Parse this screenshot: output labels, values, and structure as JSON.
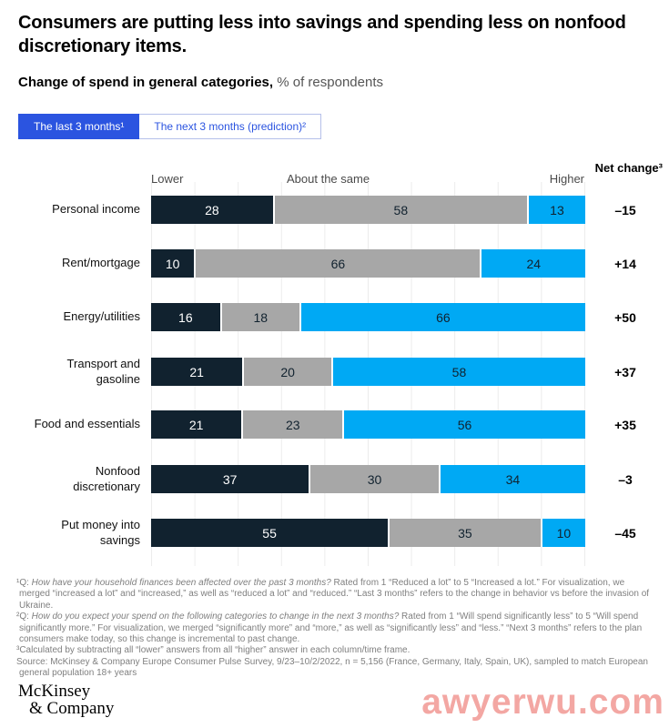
{
  "header": {
    "title": "Consumers are putting less into savings and spending less on nonfood discretionary items.",
    "subtitle_bold": "Change of spend in general categories,",
    "subtitle_regular": " % of respondents"
  },
  "tabs": [
    {
      "label": "The last 3 months¹",
      "active": true
    },
    {
      "label": "The next 3 months (prediction)²",
      "active": false
    }
  ],
  "chart_data": {
    "type": "bar",
    "orientation": "horizontal-stacked",
    "unit": "% of respondents",
    "xlim": [
      0,
      100
    ],
    "grid": true,
    "column_headers": {
      "lower": "Lower",
      "same": "About the same",
      "higher": "Higher",
      "net": "Net change³"
    },
    "categories": [
      "Personal income",
      "Rent/mortgage",
      "Energy/utilities",
      "Transport and\ngasoline",
      "Food and essentials",
      "Nonfood\ndiscretionary",
      "Put money into\nsavings"
    ],
    "series": [
      {
        "name": "Lower",
        "color": "#11222f",
        "label_color": "#ffffff",
        "values": [
          28,
          10,
          16,
          21,
          21,
          37,
          55
        ]
      },
      {
        "name": "About the same",
        "color": "#a7a7a7",
        "label_color": "#11222f",
        "values": [
          58,
          66,
          18,
          20,
          23,
          30,
          35
        ]
      },
      {
        "name": "Higher",
        "color": "#00a9f4",
        "label_color": "#11222f",
        "values": [
          13,
          24,
          66,
          58,
          56,
          34,
          10
        ]
      }
    ],
    "net_change": [
      "–15",
      "+14",
      "+50",
      "+37",
      "+35",
      "–3",
      "–45"
    ]
  },
  "footnotes": [
    {
      "parts": [
        {
          "t": "¹Q: "
        },
        {
          "t": "How have your household finances been affected over the past 3 months?",
          "i": true
        },
        {
          "t": " Rated from 1 “Reduced a lot” to 5 “Increased a lot.” For visualization, we merged “increased a lot” and “increased,” as well as “reduced a lot” and “reduced.” “Last 3 months” refers to the change in behavior vs before the invasion of Ukraine."
        }
      ]
    },
    {
      "parts": [
        {
          "t": "²Q: "
        },
        {
          "t": "How do you expect your spend on the following categories to change in the next 3 months?",
          "i": true
        },
        {
          "t": " Rated from 1 “Will spend significantly less” to 5 “Will spend significantly more.” For visualization, we merged “significantly more” and “more,” as well as “significantly less” and “less.” “Next 3 months” refers to the plan consumers make today, so this change is incremental to past change."
        }
      ]
    },
    {
      "parts": [
        {
          "t": "³Calculated by subtracting all “lower” answers from all “higher” answer in each column/time frame."
        }
      ]
    },
    {
      "parts": [
        {
          "t": "Source: McKinsey & Company Europe Consumer Pulse Survey, 9/23–10/2/2022, n = 5,156 (France, Germany, Italy, Spain, UK), sampled to match European general population 18+ years"
        }
      ]
    }
  ],
  "logo": {
    "line1": "McKinsey",
    "line2": "& Company"
  },
  "watermark": "awyerwu.com",
  "colors": {
    "lower_segment": "#11222f",
    "same_segment": "#a7a7a7",
    "higher_segment": "#00a9f4",
    "tab_active_blue": "#2b54e0",
    "gridline": "#ececec",
    "footnote_grey": "#7f7f7f",
    "watermark_pink": "#ec7872"
  }
}
